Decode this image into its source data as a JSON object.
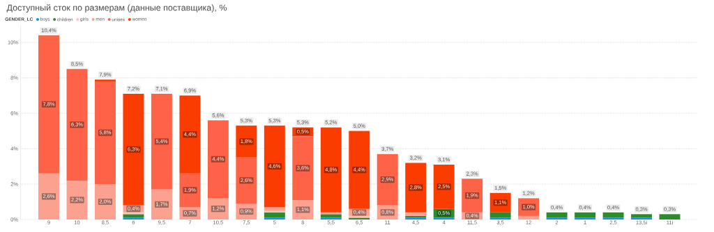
{
  "chart_data": {
    "type": "bar",
    "title": "Доступный сток по размерам (данные поставщика), %",
    "legend_title": "GENDER_LC",
    "categories": [
      "9",
      "10",
      "8,5",
      "6",
      "9,5",
      "7",
      "10,5",
      "7,5",
      "5",
      "8",
      "5,5",
      "6,5",
      "11",
      "4,5",
      "4",
      "11,5",
      "3,5",
      "12",
      "2",
      "1",
      "2,5",
      "13,5i",
      "11i"
    ],
    "stacked": true,
    "grid": "y",
    "legend": "top left",
    "ylim": [
      0,
      11
    ],
    "yticks": [
      {
        "value": 0,
        "label": "0%"
      },
      {
        "value": 2,
        "label": "2%"
      },
      {
        "value": 4,
        "label": "4%"
      },
      {
        "value": 6,
        "label": "6%"
      },
      {
        "value": 8,
        "label": "8%"
      },
      {
        "value": 10,
        "label": "10%"
      }
    ],
    "series": [
      {
        "name": "boys",
        "color": "#118dff",
        "values": [
          null,
          null,
          null,
          0.1,
          null,
          null,
          null,
          null,
          0.1,
          null,
          0.1,
          null,
          null,
          0.1,
          0.1,
          null,
          0.1,
          null,
          0.1,
          0.1,
          0.1,
          0.1,
          null
        ]
      },
      {
        "name": "children",
        "color": "#2d8a2d",
        "values": [
          null,
          null,
          null,
          0.2,
          null,
          null,
          null,
          null,
          0.3,
          null,
          0.2,
          0.1,
          null,
          0.1,
          0.5,
          null,
          0.3,
          null,
          0.3,
          0.3,
          0.3,
          0.2,
          0.3
        ],
        "value_labels": [
          null,
          null,
          null,
          null,
          null,
          null,
          null,
          null,
          null,
          null,
          null,
          null,
          null,
          null,
          "0,5%",
          null,
          null,
          null,
          null,
          null,
          null,
          null,
          null
        ]
      },
      {
        "name": "girls",
        "color": "#fdc4b8",
        "values": [
          null,
          null,
          null,
          0.1,
          null,
          null,
          null,
          null,
          0.1,
          null,
          null,
          0.1,
          null,
          null,
          null,
          null,
          null,
          null,
          null,
          null,
          null,
          null,
          null
        ]
      },
      {
        "name": "men",
        "color": "#fca08f",
        "values": [
          2.6,
          2.2,
          2.0,
          0.4,
          1.7,
          0.7,
          1.2,
          0.9,
          0.2,
          1.1,
          0.1,
          0.4,
          0.8,
          0.2,
          null,
          0.4,
          null,
          0.2,
          null,
          null,
          null,
          null,
          null
        ],
        "value_labels": [
          "2,6%",
          "2,2%",
          "2,0%",
          "0,4%",
          "1,7%",
          "0,7%",
          "1,2%",
          "0,9%",
          null,
          "1,1%",
          null,
          "0,4%",
          "0,8%",
          null,
          null,
          "0,4%",
          null,
          null,
          null,
          null,
          null,
          null,
          null
        ]
      },
      {
        "name": "unisex",
        "color": "#fe6347",
        "values": [
          7.8,
          6.3,
          5.8,
          null,
          5.4,
          1.9,
          4.4,
          2.6,
          null,
          3.6,
          null,
          null,
          2.9,
          null,
          null,
          1.9,
          null,
          1.0,
          null,
          null,
          null,
          null,
          null
        ],
        "value_labels": [
          "7,8%",
          "6,3%",
          "5,8%",
          null,
          "5,4%",
          "1,9%",
          "4,4%",
          "2,6%",
          null,
          "3,6%",
          null,
          null,
          "2,9%",
          null,
          null,
          "1,9%",
          null,
          "1,0%",
          null,
          null,
          null,
          null,
          null
        ]
      },
      {
        "name": "women",
        "color": "#fa3c00",
        "values": [
          null,
          null,
          0.1,
          6.3,
          null,
          4.4,
          null,
          1.8,
          4.6,
          0.5,
          4.8,
          4.4,
          null,
          2.8,
          2.5,
          null,
          1.1,
          null,
          null,
          null,
          null,
          null,
          null
        ],
        "value_labels": [
          null,
          null,
          null,
          "6,3%",
          null,
          "4,4%",
          null,
          "1,8%",
          "4,6%",
          "0,5%",
          "4,8%",
          "4,4%",
          null,
          "2,8%",
          "2,5%",
          null,
          "1,1%",
          null,
          null,
          null,
          null,
          null,
          null
        ]
      }
    ],
    "totals": [
      "10,4%",
      "8,5%",
      "7,9%",
      "7,2%",
      "7,1%",
      "6,9%",
      "5,6%",
      "5,3%",
      "5,3%",
      "5,3%",
      "5,2%",
      "5,0%",
      "3,7%",
      "3,2%",
      "3,1%",
      "2,3%",
      "1,5%",
      "1,2%",
      "0,4%",
      "0,4%",
      "0,4%",
      "0,3%",
      "0,3%"
    ]
  }
}
